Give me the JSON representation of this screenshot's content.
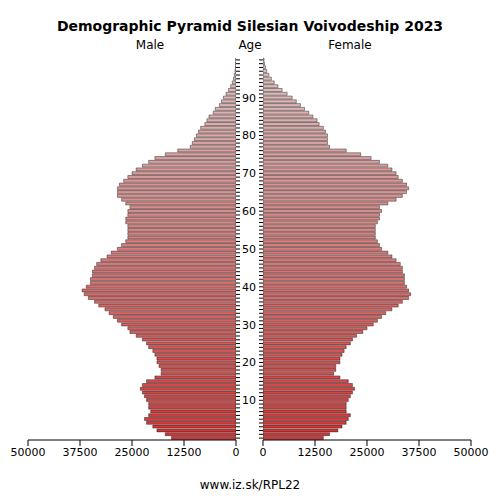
{
  "chart_data": {
    "type": "bar",
    "orientation": "horizontal",
    "title": "Demographic Pyramid Silesian Voivodeship 2023",
    "y_label": "Age",
    "source": "www.iz.sk/RPL22",
    "categories": [
      null,
      null,
      null,
      null,
      null,
      null,
      null,
      null,
      null,
      null,
      "10",
      null,
      null,
      null,
      null,
      null,
      null,
      null,
      null,
      null,
      "20",
      null,
      null,
      null,
      null,
      null,
      null,
      null,
      null,
      null,
      "30",
      null,
      null,
      null,
      null,
      null,
      null,
      null,
      null,
      null,
      "40",
      null,
      null,
      null,
      null,
      null,
      null,
      null,
      null,
      null,
      "50",
      null,
      null,
      null,
      null,
      null,
      null,
      null,
      null,
      null,
      "60",
      null,
      null,
      null,
      null,
      null,
      null,
      null,
      null,
      null,
      "70",
      null,
      null,
      null,
      null,
      null,
      null,
      null,
      null,
      null,
      "80",
      null,
      null,
      null,
      null,
      null,
      null,
      null,
      null,
      null,
      "90",
      null,
      null,
      null,
      null,
      null,
      null,
      null,
      null,
      null,
      null
    ],
    "xlim": [
      0,
      50000
    ],
    "xticks": [
      0,
      12500,
      25000,
      37500,
      50000
    ],
    "series": [
      {
        "name": "Male",
        "values": [
          15500,
          17000,
          19000,
          20000,
          21500,
          22000,
          21000,
          20500,
          21000,
          21000,
          21500,
          22000,
          22500,
          23000,
          22500,
          21500,
          19500,
          18000,
          18000,
          18500,
          19000,
          19000,
          19500,
          20000,
          21000,
          21500,
          22500,
          24000,
          25500,
          26000,
          27500,
          28500,
          29500,
          30500,
          31500,
          33000,
          34000,
          35500,
          36500,
          37000,
          36000,
          35000,
          35000,
          34500,
          34500,
          34000,
          33500,
          32500,
          31000,
          30000,
          28500,
          27500,
          26500,
          26000,
          26000,
          26000,
          26000,
          26500,
          26500,
          26000,
          26000,
          25500,
          26500,
          27500,
          28500,
          28500,
          28500,
          28000,
          27000,
          26000,
          25000,
          24000,
          22500,
          21000,
          19500,
          17000,
          14000,
          11000,
          10500,
          10000,
          9500,
          9000,
          8500,
          7500,
          7000,
          6500,
          5500,
          5000,
          4000,
          3500,
          3000,
          2400,
          1800,
          1300,
          900,
          600,
          400,
          250,
          150,
          100,
          80
        ]
      },
      {
        "name": "Female",
        "values": [
          14500,
          16000,
          18000,
          19000,
          20000,
          20500,
          21000,
          20000,
          20000,
          20000,
          20500,
          21000,
          21500,
          22000,
          21500,
          20500,
          18500,
          17000,
          17500,
          17500,
          18500,
          18500,
          19000,
          19500,
          20000,
          21000,
          21500,
          22500,
          24000,
          25000,
          26500,
          27500,
          28500,
          29500,
          31000,
          32500,
          33500,
          35000,
          35500,
          35000,
          34500,
          34000,
          34000,
          34000,
          33500,
          33500,
          33000,
          32000,
          31000,
          30000,
          28500,
          28000,
          27500,
          27000,
          27000,
          27000,
          27000,
          27500,
          28000,
          28000,
          28500,
          28000,
          30000,
          32000,
          33500,
          34500,
          35000,
          34500,
          33500,
          32500,
          32000,
          31000,
          30000,
          28000,
          26000,
          23500,
          20000,
          16000,
          15500,
          15500,
          15500,
          15000,
          14500,
          13500,
          13000,
          12000,
          11000,
          10000,
          9000,
          8000,
          7000,
          5800,
          4600,
          3600,
          2700,
          2000,
          1400,
          900,
          600,
          350,
          250
        ]
      }
    ]
  }
}
